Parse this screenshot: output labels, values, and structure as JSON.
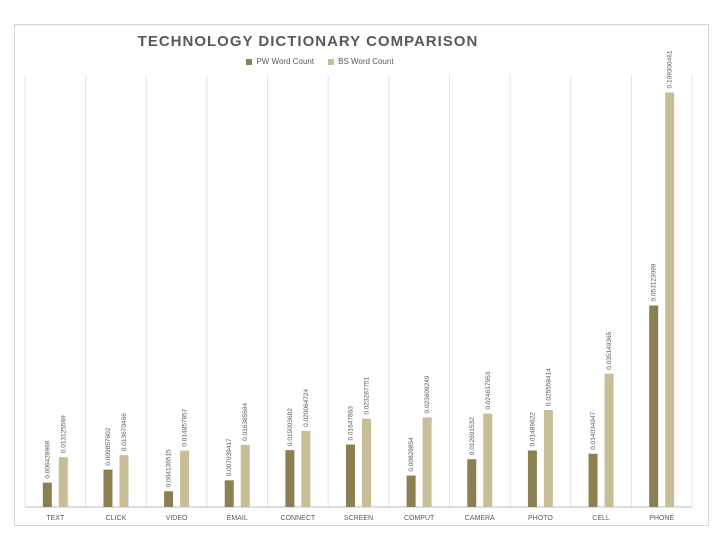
{
  "chart_data": {
    "type": "bar",
    "title": "TECHNOLOGY DICTIONARY COMPARISON",
    "xlabel": "",
    "ylabel": "",
    "categories": [
      "TEXT",
      "CLICK",
      "VIDEO",
      "EMAIL",
      "CONNECT",
      "SCREEN",
      "COMPUT",
      "CAMERA",
      "PHOTO",
      "CELL",
      "PHONE"
    ],
    "series": [
      {
        "name": "PW Word Count",
        "color": "#8b8052",
        "values": [
          0.006428969,
          0.009857602,
          0.004136515,
          0.007039417,
          0.015003682,
          0.01647863,
          0.00828854,
          0.012601532,
          0.01489622,
          0.014034947,
          0.053123099
        ]
      },
      {
        "name": "BS Word Count",
        "color": "#c7bd97",
        "values": [
          0.013125569,
          0.013670466,
          0.014857857,
          0.016385694,
          0.020064724,
          0.023287751,
          0.023609249,
          0.024617953,
          0.025558414,
          0.035149365,
          0.109300461
        ]
      }
    ],
    "value_labels": [
      [
        "0.006428969",
        "0.009857602",
        "0.004136515",
        "0.007039417",
        "0.015003682",
        "0.01647863",
        "0.00828854",
        "0.012601532",
        "0.01489622",
        "0.014034947",
        "0.053123099"
      ],
      [
        "0.013125569",
        "0.013670466",
        "0.014857857",
        "0.016385694",
        "0.020064724",
        "0.023287751",
        "0.023609249",
        "0.024617953",
        "0.025558414",
        "0.035149365",
        "0.109300461"
      ]
    ],
    "ylim": [
      0,
      0.1139
    ],
    "grid": "vertical-category-separators",
    "legend_position": "top"
  }
}
